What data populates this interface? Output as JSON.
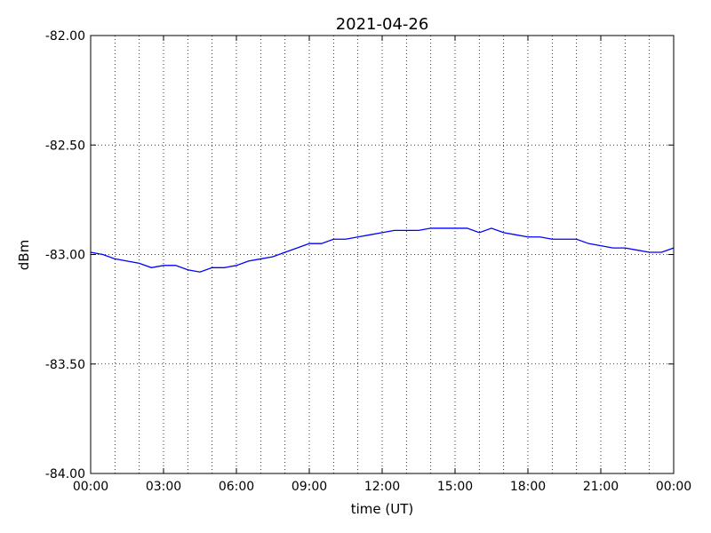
{
  "chart_data": {
    "type": "line",
    "title": "2021-04-26",
    "x_label": "time (UT)",
    "y_label": "dBm",
    "x": [
      0,
      0.5,
      1,
      1.5,
      2,
      2.5,
      3,
      3.5,
      4,
      4.5,
      5,
      5.5,
      6,
      6.5,
      7,
      7.5,
      8,
      8.5,
      9,
      9.5,
      10,
      10.5,
      11,
      11.5,
      12,
      12.5,
      13,
      13.5,
      14,
      14.5,
      15,
      15.5,
      16,
      16.5,
      17,
      17.5,
      18,
      18.5,
      19,
      19.5,
      20,
      20.5,
      21,
      21.5,
      22,
      22.5,
      23,
      23.5,
      24
    ],
    "values": [
      -82.99,
      -83.0,
      -83.02,
      -83.03,
      -83.04,
      -83.06,
      -83.05,
      -83.05,
      -83.07,
      -83.08,
      -83.06,
      -83.06,
      -83.05,
      -83.03,
      -83.02,
      -83.01,
      -82.99,
      -82.97,
      -82.95,
      -82.95,
      -82.93,
      -82.93,
      -82.92,
      -82.91,
      -82.9,
      -82.89,
      -82.89,
      -82.89,
      -82.88,
      -82.88,
      -82.88,
      -82.88,
      -82.9,
      -82.88,
      -82.9,
      -82.91,
      -82.92,
      -82.92,
      -82.93,
      -82.93,
      -82.93,
      -82.95,
      -82.96,
      -82.97,
      -82.97,
      -82.98,
      -82.99,
      -82.99,
      -82.97
    ],
    "color": "#0000ff",
    "xlim": [
      0,
      24
    ],
    "xticks": [
      {
        "value": 0,
        "label": "00:00"
      },
      {
        "value": 3,
        "label": "03:00"
      },
      {
        "value": 6,
        "label": "06:00"
      },
      {
        "value": 9,
        "label": "09:00"
      },
      {
        "value": 12,
        "label": "12:00"
      },
      {
        "value": 15,
        "label": "15:00"
      },
      {
        "value": 18,
        "label": "18:00"
      },
      {
        "value": 21,
        "label": "21:00"
      },
      {
        "value": 24,
        "label": "00:00"
      }
    ],
    "xminorticks": [
      1,
      2,
      4,
      5,
      7,
      8,
      10,
      11,
      13,
      14,
      16,
      17,
      19,
      20,
      22,
      23
    ],
    "ylim": [
      -84,
      -82
    ],
    "yticks": [
      {
        "value": -84,
        "label": "-84.00"
      },
      {
        "value": -83.5,
        "label": "-83.50"
      },
      {
        "value": -83,
        "label": "-83.00"
      },
      {
        "value": -82.5,
        "label": "-82.50"
      },
      {
        "value": -82,
        "label": "-82.00"
      }
    ],
    "grid": true
  }
}
